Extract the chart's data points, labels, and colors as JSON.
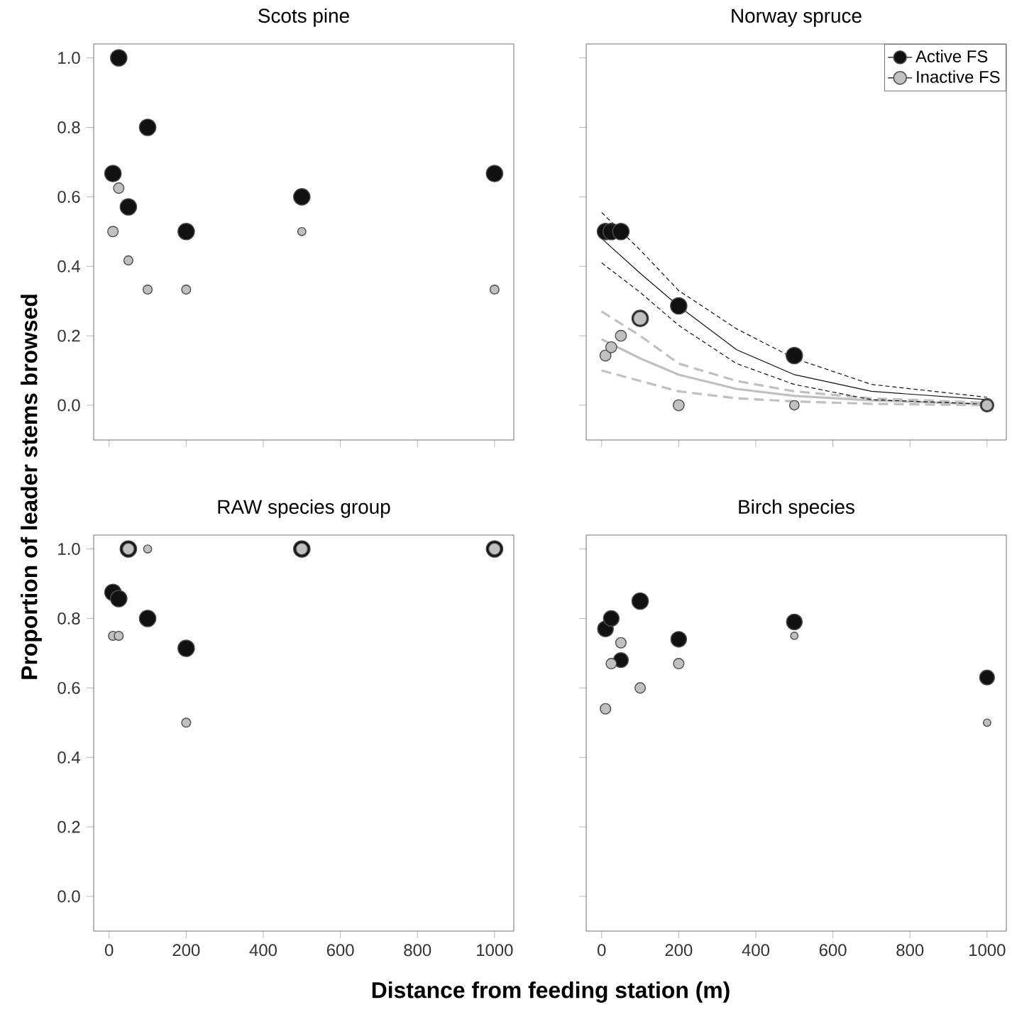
{
  "chart_data": [
    {
      "type": "bubble",
      "title": "Scots pine",
      "ylabel": "Proportion of leader stems browsed",
      "xlim": [
        -40,
        1050
      ],
      "ylim": [
        -0.1,
        1.04
      ],
      "xticks": [
        {
          "value": 0,
          "label": null
        },
        {
          "value": 200,
          "label": null
        },
        {
          "value": 400,
          "label": null
        },
        {
          "value": 600,
          "label": null
        },
        {
          "value": 800,
          "label": null
        },
        {
          "value": 1000,
          "label": null
        }
      ],
      "yticks": [
        {
          "value": 0,
          "label": "0.0"
        },
        {
          "value": 0.2,
          "label": "0.2"
        },
        {
          "value": 0.4,
          "label": "0.4"
        },
        {
          "value": 0.6,
          "label": "0.6"
        },
        {
          "value": 0.8,
          "label": "0.8"
        },
        {
          "value": 1,
          "label": "1.0"
        }
      ],
      "tick_labels": "y",
      "grid": false,
      "legend": false,
      "series": [
        {
          "color": "#111111",
          "x": [
            10,
            25,
            50,
            100,
            200,
            500,
            1000
          ],
          "values": [
            0.667,
            1.0,
            0.571,
            0.8,
            0.5,
            0.6,
            0.667
          ],
          "sizes": [
            1,
            1,
            1,
            1,
            1,
            1,
            1
          ]
        },
        {
          "color": "#c0c0c0",
          "x": [
            10,
            25,
            50,
            100,
            200,
            500,
            1000
          ],
          "values": [
            0.5,
            0.625,
            0.417,
            0.333,
            0.333,
            0.5,
            0.333
          ],
          "sizes": [
            0.4,
            0.4,
            0.3,
            0.3,
            0.3,
            0.24,
            0.3
          ]
        }
      ]
    },
    {
      "type": "bubble",
      "title": "Norway spruce",
      "xlim": [
        -40,
        1050
      ],
      "ylim": [
        -0.1,
        1.04
      ],
      "xticks": [
        {
          "value": 0,
          "label": null
        },
        {
          "value": 200,
          "label": null
        },
        {
          "value": 400,
          "label": null
        },
        {
          "value": 600,
          "label": null
        },
        {
          "value": 800,
          "label": null
        },
        {
          "value": 1000,
          "label": null
        }
      ],
      "yticks": [
        {
          "value": 0,
          "label": null
        },
        {
          "value": 0.2,
          "label": null
        },
        {
          "value": 0.4,
          "label": null
        },
        {
          "value": 0.6,
          "label": null
        },
        {
          "value": 0.8,
          "label": null
        },
        {
          "value": 1,
          "label": null
        }
      ],
      "tick_labels": false,
      "grid": false,
      "legend": "top right",
      "series": [
        {
          "type": "line",
          "color": "#c0c0c0",
          "line_style": "solid",
          "x": [
            0,
            100,
            200,
            350,
            500,
            700,
            1000
          ],
          "values": [
            0.19,
            0.135,
            0.088,
            0.047,
            0.027,
            0.014,
            0.003
          ]
        },
        {
          "type": "line",
          "color": "#c0c0c0",
          "line_style": "dashed",
          "x": [
            0,
            100,
            200,
            350,
            500,
            700,
            1000
          ],
          "values": [
            0.27,
            0.2,
            0.12,
            0.07,
            0.04,
            0.02,
            0.007
          ]
        },
        {
          "type": "line",
          "color": "#c0c0c0",
          "line_style": "dashed",
          "x": [
            0,
            100,
            200,
            350,
            500,
            700,
            1000
          ],
          "values": [
            0.1,
            0.07,
            0.04,
            0.02,
            0.011,
            0.004,
            0.0
          ]
        },
        {
          "type": "line",
          "color": "#111111",
          "line_style": "solid",
          "x": [
            0,
            100,
            200,
            350,
            500,
            700,
            1000
          ],
          "values": [
            0.48,
            0.38,
            0.285,
            0.16,
            0.088,
            0.04,
            0.016
          ]
        },
        {
          "type": "line",
          "color": "#111111",
          "line_style": "dashed",
          "x": [
            0,
            100,
            200,
            350,
            500,
            700,
            1000
          ],
          "values": [
            0.555,
            0.447,
            0.33,
            0.22,
            0.135,
            0.06,
            0.023
          ]
        },
        {
          "type": "line",
          "color": "#111111",
          "line_style": "dashed",
          "x": [
            0,
            100,
            200,
            350,
            500,
            700,
            1000
          ],
          "values": [
            0.41,
            0.325,
            0.23,
            0.12,
            0.06,
            0.016,
            0.003
          ]
        },
        {
          "name": "Active FS",
          "color": "#111111",
          "x": [
            10,
            25,
            50,
            100,
            200,
            500,
            1000
          ],
          "values": [
            0.5,
            0.5,
            0.5,
            0.25,
            0.286,
            0.143,
            0.0
          ],
          "sizes": [
            1,
            1,
            1,
            1,
            1,
            1,
            0.67
          ]
        },
        {
          "name": "Inactive FS",
          "color": "#c0c0c0",
          "x": [
            10,
            25,
            50,
            100,
            200,
            500,
            1000
          ],
          "values": [
            0.143,
            0.167,
            0.2,
            0.25,
            0.0,
            0.0,
            0.0
          ],
          "sizes": [
            0.44,
            0.44,
            0.44,
            0.67,
            0.44,
            0.33,
            0.44
          ]
        }
      ]
    },
    {
      "type": "bubble",
      "title": "RAW species group",
      "xlabel": "Distance from feeding station (m)",
      "xlim": [
        -40,
        1050
      ],
      "ylim": [
        -0.1,
        1.04
      ],
      "xticks": [
        0,
        200,
        400,
        600,
        800,
        1000
      ],
      "yticks": [
        {
          "value": 0,
          "label": "0.0"
        },
        {
          "value": 0.2,
          "label": "0.2"
        },
        {
          "value": 0.4,
          "label": "0.4"
        },
        {
          "value": 0.6,
          "label": "0.6"
        },
        {
          "value": 0.8,
          "label": "0.8"
        },
        {
          "value": 1,
          "label": "1.0"
        }
      ],
      "grid": false,
      "legend": false,
      "series": [
        {
          "color": "#111111",
          "x": [
            10,
            25,
            50,
            100,
            200,
            500,
            1000
          ],
          "values": [
            0.875,
            0.857,
            1.0,
            0.8,
            0.714,
            1.0,
            1.0
          ],
          "sizes": [
            1,
            1,
            1,
            1,
            1,
            1,
            1
          ]
        },
        {
          "color": "#c0c0c0",
          "x": [
            10,
            25,
            50,
            100,
            200,
            500,
            1000
          ],
          "values": [
            0.75,
            0.75,
            1.0,
            1.0,
            0.5,
            1.0,
            1.0
          ],
          "sizes": [
            0.3,
            0.3,
            0.5,
            0.24,
            0.3,
            0.5,
            0.5
          ]
        }
      ]
    },
    {
      "type": "bubble",
      "title": "Birch species",
      "xlim": [
        -40,
        1050
      ],
      "ylim": [
        -0.1,
        1.04
      ],
      "xticks": [
        0,
        200,
        400,
        600,
        800,
        1000
      ],
      "yticks": [
        {
          "value": 0,
          "label": null
        },
        {
          "value": 0.2,
          "label": null
        },
        {
          "value": 0.4,
          "label": null
        },
        {
          "value": 0.6,
          "label": null
        },
        {
          "value": 0.8,
          "label": null
        },
        {
          "value": 1,
          "label": null
        }
      ],
      "tick_labels": "x",
      "grid": false,
      "legend": false,
      "series": [
        {
          "color": "#111111",
          "x": [
            10,
            25,
            50,
            100,
            200,
            500,
            1000
          ],
          "values": [
            0.77,
            0.8,
            0.68,
            0.85,
            0.74,
            0.79,
            0.63
          ],
          "sizes": [
            0.9,
            0.9,
            0.8,
            1.0,
            0.9,
            0.9,
            0.8
          ]
        },
        {
          "color": "#c0c0c0",
          "x": [
            10,
            25,
            50,
            100,
            200,
            500,
            1000
          ],
          "values": [
            0.54,
            0.67,
            0.73,
            0.6,
            0.67,
            0.75,
            0.5
          ],
          "sizes": [
            0.4,
            0.4,
            0.4,
            0.4,
            0.4,
            0.2,
            0.2
          ]
        }
      ]
    }
  ]
}
